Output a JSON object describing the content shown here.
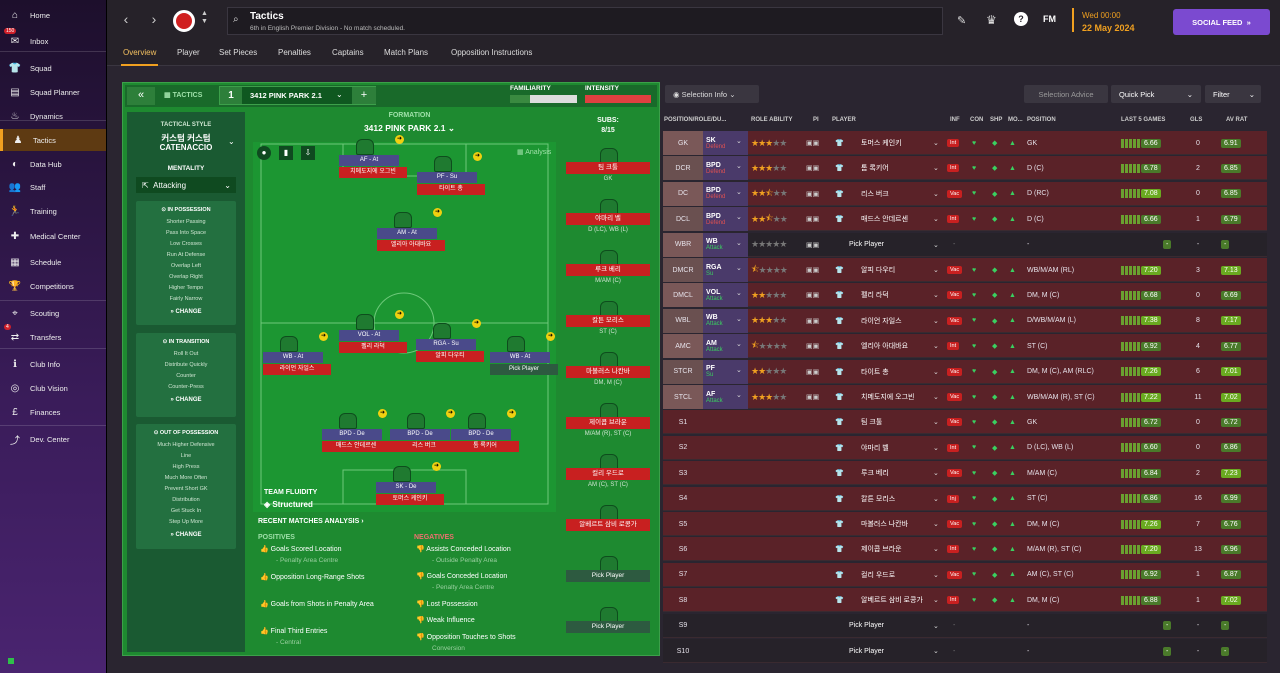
{
  "sidebar": {
    "items": [
      {
        "label": "Home",
        "icon": "home-icon"
      },
      {
        "label": "Inbox",
        "icon": "inbox-icon",
        "badge": "150"
      },
      {
        "label": "Squad",
        "icon": "shirt-icon"
      },
      {
        "label": "Squad Planner",
        "icon": "planner-icon"
      },
      {
        "label": "Dynamics",
        "icon": "dynamics-icon"
      },
      {
        "label": "Tactics",
        "icon": "tactics-icon"
      },
      {
        "label": "Data Hub",
        "icon": "datahub-icon"
      },
      {
        "label": "Staff",
        "icon": "staff-icon"
      },
      {
        "label": "Training",
        "icon": "training-icon"
      },
      {
        "label": "Medical Center",
        "icon": "medical-icon"
      },
      {
        "label": "Schedule",
        "icon": "calendar-icon"
      },
      {
        "label": "Competitions",
        "icon": "trophy-icon"
      },
      {
        "label": "Scouting",
        "icon": "scouting-icon"
      },
      {
        "label": "Transfers",
        "icon": "transfers-icon",
        "badge": "4"
      },
      {
        "label": "Club Info",
        "icon": "clubinfo-icon"
      },
      {
        "label": "Club Vision",
        "icon": "vision-icon"
      },
      {
        "label": "Finances",
        "icon": "finances-icon"
      },
      {
        "label": "Dev. Center",
        "icon": "devcenter-icon"
      }
    ]
  },
  "header": {
    "title": "Tactics",
    "subtitle": "6th in English Premier Division - No match scheduled.",
    "day": "Wed 00:00",
    "date": "22 May 2024",
    "social": "SOCIAL FEED",
    "fm": "FM"
  },
  "tabs": [
    "Overview",
    "Player",
    "Set Pieces",
    "Penalties",
    "Captains",
    "Match Plans",
    "Opposition Instructions"
  ],
  "tactic": {
    "back": "«",
    "label": "TACTICS",
    "slot": "1",
    "name": "3412 PINK PARK 2.1",
    "familiarity": "FAMILIARITY",
    "intensity": "INTENSITY",
    "formation_label": "FORMATION",
    "formation": "3412 PINK PARK 2.1",
    "subs_label": "SUBS:",
    "subs": "8/15",
    "analysis": "Analysis"
  },
  "style": {
    "label": "TACTICAL STYLE",
    "name1": "커스텀 커스텀",
    "name2": "CATENACCIO",
    "mentality_label": "MENTALITY",
    "mentality": "Attacking"
  },
  "possession": {
    "title": "IN POSSESSION",
    "items": [
      "Shorter Passing",
      "Pass Into Space",
      "Low Crosses",
      "Run At Defense",
      "Overlap Left",
      "Overlap Right",
      "Higher Tempo",
      "Fairly Narrow"
    ],
    "change": "CHANGE"
  },
  "transition": {
    "title": "IN TRANSITION",
    "items": [
      "Roll It Out",
      "Distribute Quickly",
      "Counter",
      "Counter-Press"
    ],
    "change": "CHANGE"
  },
  "oop": {
    "title": "OUT OF POSSESSION",
    "items": [
      "Much Higher Defensive",
      "Line",
      "High Press",
      "Much More Often",
      "Prevent Short GK",
      "Distribution",
      "Get Stuck In",
      "Step Up More"
    ],
    "change": "CHANGE"
  },
  "pitch_players": [
    {
      "role": "AF - At",
      "name": "치메도지에 오그빈"
    },
    {
      "role": "PF - Su",
      "name": "타이트 총"
    },
    {
      "role": "AM - At",
      "name": "엘리아 아대바요"
    },
    {
      "role": "VOL - At",
      "name": "펠리 라덕"
    },
    {
      "role": "RGA - Su",
      "name": "알피 다우티"
    },
    {
      "role": "WB - At",
      "name": "라이언 자일스"
    },
    {
      "role": "WB - At",
      "name": "Pick Player"
    },
    {
      "role": "BPD - De",
      "name": "매드스 안데르센"
    },
    {
      "role": "BPD - De",
      "name": "리스 버크"
    },
    {
      "role": "BPD - De",
      "name": "톰 록키어"
    },
    {
      "role": "SK - De",
      "name": "토머스 케인키"
    }
  ],
  "fluidity": {
    "label": "TEAM FLUIDITY",
    "value": "Structured"
  },
  "subs": [
    {
      "name": "팀 크툴",
      "pos": "GK"
    },
    {
      "name": "야마리 벨",
      "pos": "D (LC), WB (L)"
    },
    {
      "name": "루크 베리",
      "pos": "M/AM (C)"
    },
    {
      "name": "칼튼 모리스",
      "pos": "ST (C)"
    },
    {
      "name": "마볼러스 나칸바",
      "pos": "DM, M (C)"
    },
    {
      "name": "제이콥 브라운",
      "pos": "M/AM (R), ST (C)"
    },
    {
      "name": "컬리 우드로",
      "pos": "AM (C), ST (C)"
    },
    {
      "name": "알베르트 삼비 로콩가",
      "pos": ""
    },
    {
      "name": "Pick Player",
      "pos": ""
    },
    {
      "name": "Pick Player",
      "pos": ""
    }
  ],
  "analysis": {
    "title": "RECENT MATCHES ANALYSIS",
    "pos_title": "POSITIVES",
    "neg_title": "NEGATIVES",
    "positives": [
      {
        "t": "Goals Scored Location",
        "d": "- Penalty Area Centre"
      },
      {
        "t": "Opposition Long-Range Shots",
        "d": ""
      },
      {
        "t": "Goals from Shots in Penalty Area",
        "d": ""
      },
      {
        "t": "Final Third Entries",
        "d": "- Central"
      }
    ],
    "negatives": [
      {
        "t": "Assists Conceded Location",
        "d": "- Outside Penalty Area"
      },
      {
        "t": "Goals Conceded Location",
        "d": "- Penalty Area Centre"
      },
      {
        "t": "Lost Possession",
        "d": ""
      },
      {
        "t": "Weak Influence",
        "d": ""
      },
      {
        "t": "Opposition Touches to Shots",
        "d": "Conversion"
      }
    ]
  },
  "right": {
    "selection_info": "Selection Info",
    "selection_advice": "Selection Advice",
    "quick_pick": "Quick Pick",
    "filter": "Filter",
    "headers": [
      "POSITION/ROLE/DU...",
      "ROLE ABILITY",
      "PI",
      "PLAYER",
      "INF",
      "CON",
      "SHP",
      "MO...",
      "POSITION",
      "LAST 5 GAMES",
      "GLS",
      "AV RAT"
    ],
    "rows": [
      {
        "pos": "GK",
        "role": "SK",
        "duty": "Defend",
        "stars": 3,
        "player": "토머스 케인키",
        "inf": "Int",
        "position": "GK",
        "form": "6.66",
        "gls": "0",
        "av": "6.91"
      },
      {
        "pos": "DCR",
        "role": "BPD",
        "duty": "Defend",
        "stars": 3,
        "player": "톰 록키어",
        "inf": "Int",
        "position": "D (C)",
        "form": "6.78",
        "gls": "2",
        "av": "6.85"
      },
      {
        "pos": "DC",
        "role": "BPD",
        "duty": "Defend",
        "stars": 2.5,
        "player": "리스 버크",
        "inf": "Vac",
        "position": "D (RC)",
        "form": "7.08",
        "gls": "0",
        "av": "6.85"
      },
      {
        "pos": "DCL",
        "role": "BPD",
        "duty": "Defend",
        "stars": 2.5,
        "player": "매드스 안데르센",
        "inf": "Int",
        "position": "D (C)",
        "form": "6.66",
        "gls": "1",
        "av": "6.79"
      },
      {
        "pos": "WBR",
        "role": "WB",
        "duty": "Attack",
        "stars": 0,
        "player": "Pick Player",
        "inf": "",
        "position": "-",
        "form": "-",
        "gls": "-",
        "av": "-"
      },
      {
        "pos": "DMCR",
        "role": "RGA",
        "duty": "Su",
        "stars": 0.5,
        "player": "알피 다우티",
        "inf": "Vac",
        "position": "WB/M/AM (RL)",
        "form": "7.20",
        "gls": "3",
        "av": "7.13"
      },
      {
        "pos": "DMCL",
        "role": "VOL",
        "duty": "Attack",
        "stars": 2,
        "player": "펠리 라덕",
        "inf": "Vac",
        "position": "DM, M (C)",
        "form": "6.68",
        "gls": "0",
        "av": "6.69"
      },
      {
        "pos": "WBL",
        "role": "WB",
        "duty": "Attack",
        "stars": 3,
        "player": "라이언 자일스",
        "inf": "Vac",
        "position": "D/WB/M/AM (L)",
        "form": "7.38",
        "gls": "8",
        "av": "7.17"
      },
      {
        "pos": "AMC",
        "role": "AM",
        "duty": "Attack",
        "stars": 0.5,
        "player": "엘리아 아대바요",
        "inf": "Int",
        "position": "ST (C)",
        "form": "6.92",
        "gls": "4",
        "av": "6.77"
      },
      {
        "pos": "STCR",
        "role": "PF",
        "duty": "Su",
        "stars": 2,
        "player": "타이트 총",
        "inf": "Vac",
        "position": "DM, M (C), AM (RLC)",
        "form": "7.26",
        "gls": "6",
        "av": "7.01"
      },
      {
        "pos": "STCL",
        "role": "AF",
        "duty": "Attack",
        "stars": 3,
        "player": "치메도지에 오그빈",
        "inf": "Vac",
        "position": "WB/M/AM (R), ST (C)",
        "form": "7.22",
        "gls": "11",
        "av": "7.02"
      },
      {
        "pos": "S1",
        "role": "",
        "duty": "",
        "stars": -1,
        "player": "팀 크툴",
        "inf": "Vac",
        "position": "GK",
        "form": "6.72",
        "gls": "0",
        "av": "6.72"
      },
      {
        "pos": "S2",
        "role": "",
        "duty": "",
        "stars": -1,
        "player": "야마리 벨",
        "inf": "Int",
        "position": "D (LC), WB (L)",
        "form": "6.60",
        "gls": "0",
        "av": "6.86"
      },
      {
        "pos": "S3",
        "role": "",
        "duty": "",
        "stars": -1,
        "player": "루크 베리",
        "inf": "Vac",
        "position": "M/AM (C)",
        "form": "6.84",
        "gls": "2",
        "av": "7.23"
      },
      {
        "pos": "S4",
        "role": "",
        "duty": "",
        "stars": -1,
        "player": "칼튼 모리스",
        "inf": "Inj",
        "position": "ST (C)",
        "form": "6.86",
        "gls": "16",
        "av": "6.99"
      },
      {
        "pos": "S5",
        "role": "",
        "duty": "",
        "stars": -1,
        "player": "마볼러스 나칸바",
        "inf": "Vac",
        "position": "DM, M (C)",
        "form": "7.26",
        "gls": "7",
        "av": "6.76"
      },
      {
        "pos": "S6",
        "role": "",
        "duty": "",
        "stars": -1,
        "player": "제이콥 브라운",
        "inf": "Int",
        "position": "M/AM (R), ST (C)",
        "form": "7.20",
        "gls": "13",
        "av": "6.96"
      },
      {
        "pos": "S7",
        "role": "",
        "duty": "",
        "stars": -1,
        "player": "컬리 우드로",
        "inf": "Vac",
        "position": "AM (C), ST (C)",
        "form": "6.92",
        "gls": "1",
        "av": "6.87"
      },
      {
        "pos": "S8",
        "role": "",
        "duty": "",
        "stars": -1,
        "player": "알베르트 삼비 로콩가",
        "inf": "Int",
        "position": "DM, M (C)",
        "form": "6.88",
        "gls": "1",
        "av": "7.02"
      },
      {
        "pos": "S9",
        "role": "",
        "duty": "",
        "stars": -1,
        "player": "Pick Player",
        "inf": "",
        "position": "-",
        "form": "-",
        "gls": "-",
        "av": "-"
      },
      {
        "pos": "S10",
        "role": "",
        "duty": "",
        "stars": -1,
        "player": "Pick Player",
        "inf": "",
        "position": "-",
        "form": "-",
        "gls": "-",
        "av": "-"
      }
    ]
  }
}
